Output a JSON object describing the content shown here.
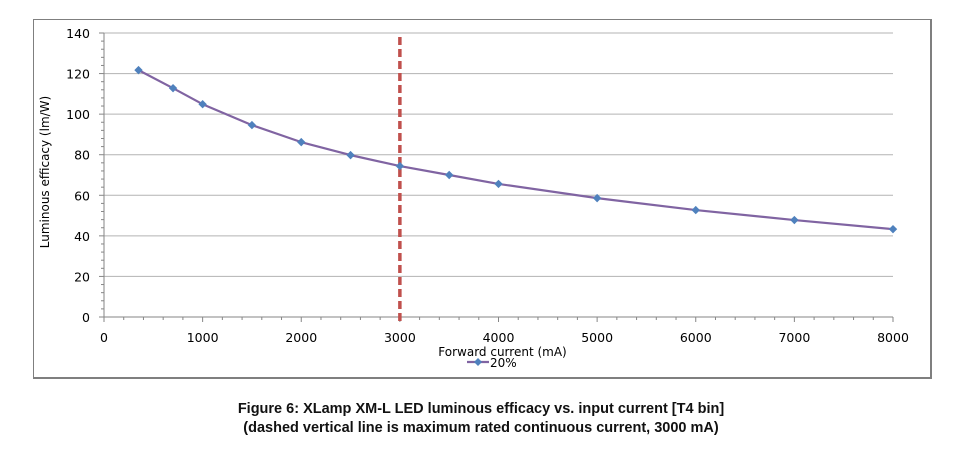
{
  "chart_data": {
    "type": "line",
    "title": "",
    "xlabel": "Forward current (mA)",
    "ylabel": "Luminous efficacy (lm/W)",
    "xlim": [
      0,
      8000
    ],
    "ylim": [
      0,
      140
    ],
    "x_ticks": [
      0,
      1000,
      2000,
      3000,
      4000,
      5000,
      6000,
      7000,
      8000
    ],
    "y_ticks": [
      0,
      20,
      40,
      60,
      80,
      100,
      120,
      140
    ],
    "grid": "horizontal",
    "legend": {
      "position": "bottom",
      "entries": [
        "20%"
      ]
    },
    "series": [
      {
        "name": "20%",
        "color": "#8064a2",
        "marker_color": "#4f81bd",
        "marker": "diamond",
        "x": [
          350,
          700,
          1000,
          1500,
          2000,
          2500,
          3000,
          3500,
          4000,
          5000,
          6000,
          7000,
          8000
        ],
        "y": [
          121.7,
          112.8,
          104.9,
          94.6,
          86.2,
          79.8,
          74.4,
          70.0,
          65.6,
          58.6,
          52.7,
          47.8,
          43.3
        ]
      }
    ],
    "annotations": [
      {
        "type": "vertical-dashed-line",
        "x": 3000,
        "color": "#c0504d",
        "meaning": "maximum rated continuous current"
      }
    ]
  },
  "caption": {
    "line1": "Figure 6: XLamp XM-L LED luminous efficacy vs. input current [T4 bin]",
    "line2": "(dashed vertical line is maximum rated continuous current, 3000 mA)"
  }
}
